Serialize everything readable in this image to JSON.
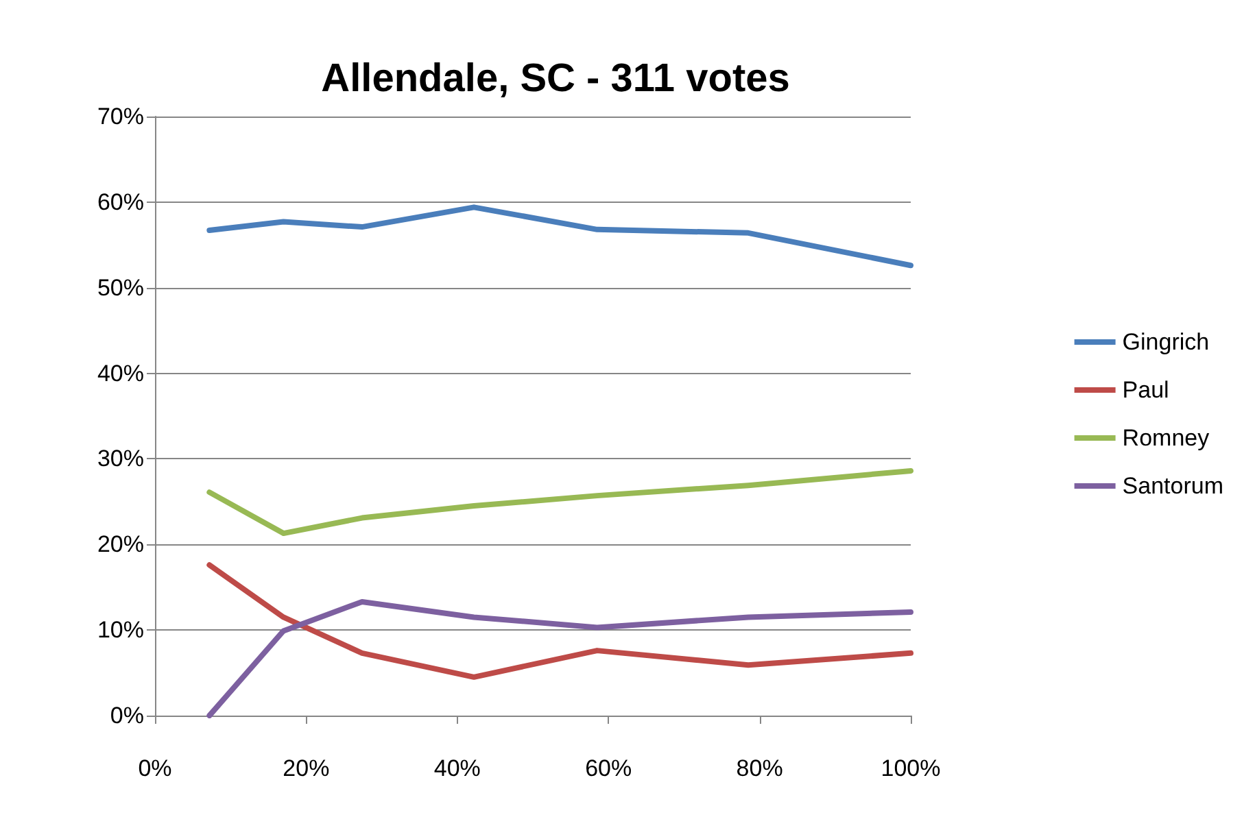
{
  "chart_data": {
    "type": "line",
    "title": "Allendale, SC - 311 votes",
    "x": [
      7.2,
      17,
      27.4,
      42.2,
      58.5,
      78.5,
      100
    ],
    "series": [
      {
        "name": "Gingrich",
        "color": "#4a7ebb",
        "values": [
          56.7,
          57.7,
          57.1,
          59.4,
          56.8,
          56.4,
          52.6
        ]
      },
      {
        "name": "Paul",
        "color": "#be4b48",
        "values": [
          17.6,
          11.5,
          7.3,
          4.5,
          7.6,
          5.9,
          7.3
        ]
      },
      {
        "name": "Romney",
        "color": "#98b954",
        "values": [
          26.1,
          21.3,
          23.1,
          24.5,
          25.7,
          26.9,
          28.6
        ]
      },
      {
        "name": "Santorum",
        "color": "#7d60a0",
        "values": [
          0,
          9.9,
          13.3,
          11.5,
          10.3,
          11.5,
          12.1
        ]
      }
    ],
    "xlim": [
      0,
      100
    ],
    "xticks": [
      {
        "value": 0,
        "label": "0%"
      },
      {
        "value": 20,
        "label": "20%"
      },
      {
        "value": 40,
        "label": "40%"
      },
      {
        "value": 60,
        "label": "60%"
      },
      {
        "value": 80,
        "label": "80%"
      },
      {
        "value": 100,
        "label": "100%"
      }
    ],
    "ylim": [
      0,
      70
    ],
    "yticks": [
      {
        "value": 0,
        "label": "0%"
      },
      {
        "value": 10,
        "label": "10%"
      },
      {
        "value": 20,
        "label": "20%"
      },
      {
        "value": 30,
        "label": "30%"
      },
      {
        "value": 40,
        "label": "40%"
      },
      {
        "value": 50,
        "label": "50%"
      },
      {
        "value": 60,
        "label": "60%"
      },
      {
        "value": 70,
        "label": "70%"
      }
    ],
    "grid": "y",
    "legend": "right",
    "marker": "none",
    "line_style": "solid"
  }
}
